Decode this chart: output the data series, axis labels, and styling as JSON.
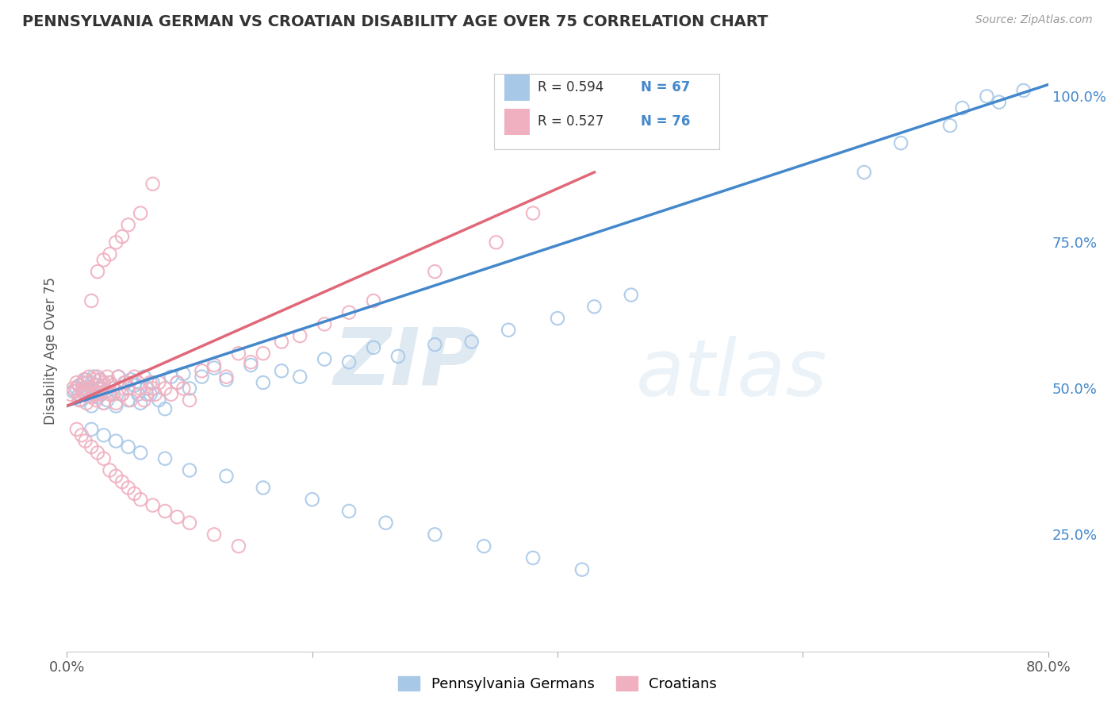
{
  "title": "PENNSYLVANIA GERMAN VS CROATIAN DISABILITY AGE OVER 75 CORRELATION CHART",
  "source": "Source: ZipAtlas.com",
  "ylabel": "Disability Age Over 75",
  "x_min": 0.0,
  "x_max": 0.8,
  "y_min": 0.05,
  "y_max": 1.08,
  "x_ticks": [
    0.0,
    0.2,
    0.4,
    0.6,
    0.8
  ],
  "x_tick_labels": [
    "0.0%",
    "",
    "",
    "",
    "80.0%"
  ],
  "y_ticks_right": [
    0.25,
    0.5,
    0.75,
    1.0
  ],
  "y_tick_labels_right": [
    "25.0%",
    "50.0%",
    "75.0%",
    "100.0%"
  ],
  "blue_color": "#a8c8e8",
  "pink_color": "#f0b0c0",
  "blue_line_color": "#4488cc",
  "pink_line_color": "#e06878",
  "blue_line_x0": 0.0,
  "blue_line_y0": 0.47,
  "blue_line_x1": 0.8,
  "blue_line_y1": 1.02,
  "pink_line_x0": 0.0,
  "pink_line_y0": 0.47,
  "pink_line_x1": 0.43,
  "pink_line_y1": 0.87,
  "legend_r_blue": "R = 0.594",
  "legend_n_blue": "N = 67",
  "legend_r_pink": "R = 0.527",
  "legend_n_pink": "N = 76",
  "legend_label_blue": "Pennsylvania Germans",
  "legend_label_pink": "Croatians",
  "watermark_zip": "ZIP",
  "watermark_atlas": "atlas",
  "grid_color": "#cccccc",
  "background_color": "#ffffff",
  "blue_scatter_x": [
    0.005,
    0.008,
    0.01,
    0.01,
    0.012,
    0.013,
    0.014,
    0.015,
    0.015,
    0.018,
    0.02,
    0.02,
    0.022,
    0.022,
    0.025,
    0.025,
    0.027,
    0.028,
    0.03,
    0.03,
    0.032,
    0.033,
    0.035,
    0.038,
    0.04,
    0.042,
    0.045,
    0.048,
    0.05,
    0.052,
    0.055,
    0.058,
    0.06,
    0.063,
    0.065,
    0.068,
    0.07,
    0.075,
    0.08,
    0.085,
    0.09,
    0.095,
    0.1,
    0.11,
    0.12,
    0.13,
    0.15,
    0.16,
    0.175,
    0.19,
    0.21,
    0.23,
    0.25,
    0.27,
    0.3,
    0.33,
    0.36,
    0.4,
    0.43,
    0.46,
    0.65,
    0.68,
    0.72,
    0.73,
    0.75,
    0.76,
    0.78
  ],
  "blue_scatter_y": [
    0.495,
    0.5,
    0.49,
    0.505,
    0.48,
    0.51,
    0.495,
    0.5,
    0.515,
    0.488,
    0.47,
    0.51,
    0.495,
    0.52,
    0.485,
    0.5,
    0.515,
    0.49,
    0.475,
    0.505,
    0.495,
    0.48,
    0.51,
    0.5,
    0.47,
    0.52,
    0.49,
    0.51,
    0.48,
    0.515,
    0.505,
    0.49,
    0.475,
    0.52,
    0.5,
    0.49,
    0.51,
    0.48,
    0.465,
    0.52,
    0.51,
    0.525,
    0.5,
    0.52,
    0.535,
    0.515,
    0.54,
    0.51,
    0.53,
    0.52,
    0.55,
    0.545,
    0.57,
    0.555,
    0.575,
    0.58,
    0.6,
    0.62,
    0.64,
    0.66,
    0.87,
    0.92,
    0.95,
    0.98,
    1.0,
    0.99,
    1.01
  ],
  "pink_scatter_x": [
    0.003,
    0.005,
    0.007,
    0.008,
    0.01,
    0.01,
    0.012,
    0.013,
    0.014,
    0.015,
    0.016,
    0.017,
    0.018,
    0.018,
    0.02,
    0.02,
    0.022,
    0.023,
    0.024,
    0.025,
    0.025,
    0.026,
    0.027,
    0.028,
    0.03,
    0.03,
    0.032,
    0.033,
    0.035,
    0.035,
    0.037,
    0.038,
    0.04,
    0.042,
    0.043,
    0.045,
    0.047,
    0.05,
    0.052,
    0.055,
    0.058,
    0.06,
    0.063,
    0.065,
    0.068,
    0.07,
    0.072,
    0.075,
    0.08,
    0.085,
    0.09,
    0.095,
    0.1,
    0.11,
    0.12,
    0.13,
    0.14,
    0.15,
    0.16,
    0.175,
    0.19,
    0.21,
    0.23,
    0.25,
    0.3,
    0.35,
    0.38,
    0.02,
    0.025,
    0.03,
    0.035,
    0.04,
    0.045,
    0.05,
    0.06,
    0.07
  ],
  "pink_scatter_y": [
    0.49,
    0.5,
    0.495,
    0.51,
    0.48,
    0.505,
    0.495,
    0.5,
    0.515,
    0.49,
    0.475,
    0.51,
    0.495,
    0.52,
    0.485,
    0.5,
    0.515,
    0.49,
    0.48,
    0.505,
    0.52,
    0.49,
    0.515,
    0.5,
    0.475,
    0.51,
    0.495,
    0.52,
    0.49,
    0.51,
    0.505,
    0.49,
    0.475,
    0.52,
    0.5,
    0.49,
    0.51,
    0.5,
    0.48,
    0.52,
    0.51,
    0.5,
    0.48,
    0.49,
    0.51,
    0.5,
    0.49,
    0.51,
    0.5,
    0.49,
    0.51,
    0.5,
    0.48,
    0.53,
    0.54,
    0.52,
    0.56,
    0.545,
    0.56,
    0.58,
    0.59,
    0.61,
    0.63,
    0.65,
    0.7,
    0.75,
    0.8,
    0.65,
    0.7,
    0.72,
    0.73,
    0.75,
    0.76,
    0.78,
    0.8,
    0.85
  ],
  "pink_low_x": [
    0.008,
    0.012,
    0.015,
    0.02,
    0.025,
    0.03,
    0.035,
    0.04,
    0.045,
    0.05,
    0.055,
    0.06,
    0.07,
    0.08,
    0.09,
    0.1,
    0.12,
    0.14
  ],
  "pink_low_y": [
    0.43,
    0.42,
    0.41,
    0.4,
    0.39,
    0.38,
    0.36,
    0.35,
    0.34,
    0.33,
    0.32,
    0.31,
    0.3,
    0.29,
    0.28,
    0.27,
    0.25,
    0.23
  ],
  "blue_low_x": [
    0.02,
    0.03,
    0.04,
    0.05,
    0.06,
    0.08,
    0.1,
    0.13,
    0.16,
    0.2,
    0.23,
    0.26,
    0.3,
    0.34,
    0.38,
    0.42
  ],
  "blue_low_y": [
    0.43,
    0.42,
    0.41,
    0.4,
    0.39,
    0.38,
    0.36,
    0.35,
    0.33,
    0.31,
    0.29,
    0.27,
    0.25,
    0.23,
    0.21,
    0.19
  ]
}
